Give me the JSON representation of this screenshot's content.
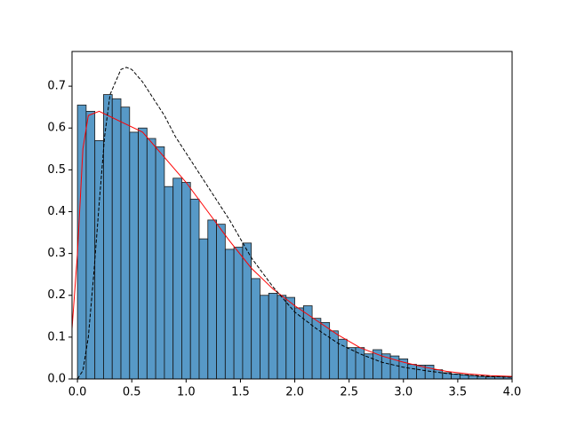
{
  "chart_data": {
    "type": "histogram",
    "bins": [
      0,
      0.08,
      0.16,
      0.24,
      0.32,
      0.4,
      0.48,
      0.56,
      0.64,
      0.72,
      0.8,
      0.88,
      0.96,
      1.04,
      1.12,
      1.2,
      1.28,
      1.36,
      1.44,
      1.52,
      1.6,
      1.68,
      1.76,
      1.84,
      1.92,
      2.0,
      2.08,
      2.16,
      2.24,
      2.32,
      2.4,
      2.48,
      2.56,
      2.64,
      2.72,
      2.8,
      2.88,
      2.96,
      3.04,
      3.12,
      3.2,
      3.28,
      3.36,
      3.44,
      3.52,
      3.6,
      3.68,
      3.76,
      3.84,
      3.92,
      4.0
    ],
    "values": [
      0.655,
      0.64,
      0.57,
      0.68,
      0.67,
      0.65,
      0.59,
      0.6,
      0.575,
      0.555,
      0.46,
      0.48,
      0.47,
      0.43,
      0.335,
      0.38,
      0.37,
      0.31,
      0.315,
      0.325,
      0.24,
      0.2,
      0.205,
      0.2,
      0.195,
      0.17,
      0.175,
      0.145,
      0.135,
      0.115,
      0.095,
      0.075,
      0.075,
      0.06,
      0.07,
      0.06,
      0.055,
      0.048,
      0.035,
      0.033,
      0.033,
      0.022,
      0.015,
      0.012,
      0.01,
      0.008,
      0.006,
      0.005,
      0.005,
      0.005
    ],
    "color": "#1f77b4",
    "lines": [
      {
        "color": "#ff0000",
        "dashed": false,
        "x": [
          -0.05,
          0,
          0.05,
          0.1,
          0.2,
          0.4,
          0.6,
          0.8,
          1.0,
          1.2,
          1.4,
          1.6,
          1.8,
          2.0,
          2.2,
          2.4,
          2.6,
          2.8,
          3.0,
          3.2,
          3.4,
          3.6,
          3.8,
          4.0
        ],
        "values": [
          0.12,
          0.3,
          0.55,
          0.63,
          0.64,
          0.615,
          0.59,
          0.53,
          0.47,
          0.4,
          0.33,
          0.265,
          0.215,
          0.175,
          0.14,
          0.105,
          0.075,
          0.055,
          0.04,
          0.028,
          0.018,
          0.012,
          0.008,
          0.006
        ]
      },
      {
        "color": "#000000",
        "dashed": true,
        "x": [
          0,
          0.05,
          0.1,
          0.15,
          0.2,
          0.25,
          0.3,
          0.4,
          0.45,
          0.5,
          0.6,
          0.7,
          0.8,
          0.9,
          1.0,
          1.2,
          1.4,
          1.6,
          1.8,
          2.0,
          2.2,
          2.4,
          2.6,
          2.8,
          3.0,
          3.2,
          3.4,
          3.6,
          3.8,
          4.0
        ],
        "values": [
          0,
          0.02,
          0.1,
          0.25,
          0.42,
          0.58,
          0.68,
          0.74,
          0.745,
          0.74,
          0.71,
          0.67,
          0.63,
          0.58,
          0.54,
          0.46,
          0.38,
          0.29,
          0.22,
          0.16,
          0.12,
          0.085,
          0.06,
          0.04,
          0.028,
          0.02,
          0.013,
          0.009,
          0.006,
          0.004
        ]
      }
    ],
    "xlim": [
      -0.05,
      4.0
    ],
    "ylim": [
      0,
      0.783
    ],
    "xticks": [
      {
        "value": 0,
        "label": "0.0"
      },
      0.5,
      {
        "value": 1,
        "label": "1.0"
      },
      1.5,
      {
        "value": 2,
        "label": "2.0"
      },
      2.5,
      {
        "value": 3,
        "label": "3.0"
      },
      3.5,
      {
        "value": 4,
        "label": "4.0"
      }
    ],
    "yticks": [
      {
        "value": 0,
        "label": "0.0"
      },
      0.1,
      0.2,
      0.3,
      0.4,
      0.5,
      0.6,
      0.7
    ],
    "grid": false
  }
}
